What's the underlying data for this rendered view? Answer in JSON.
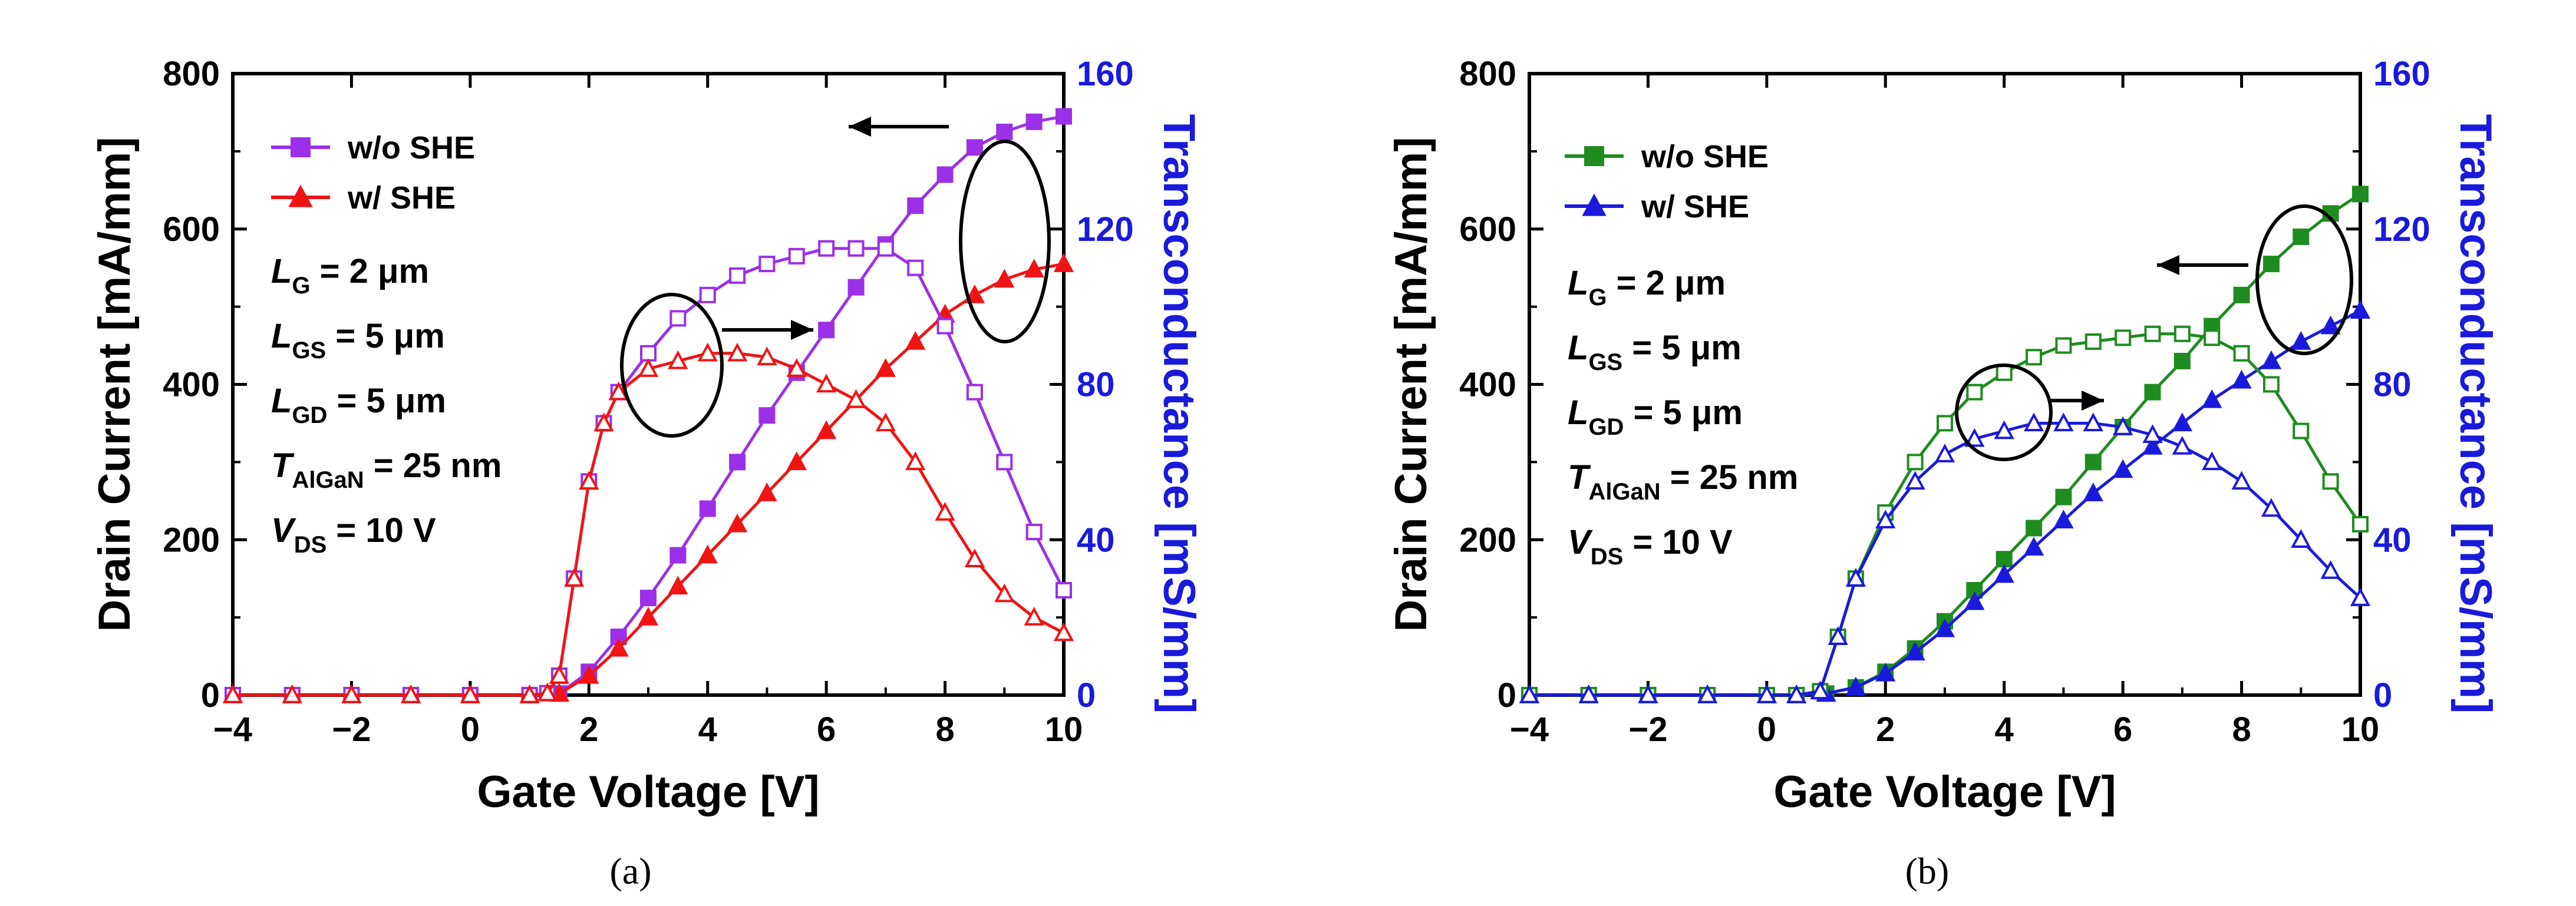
{
  "chart_data": [
    {
      "type": "line",
      "caption": "(a)",
      "xlabel": "Gate Voltage [V]",
      "ylabel_left": "Drain Current [mA/mm]",
      "ylabel_right": "Transconductance [mS/mm]",
      "xlim": [
        -4,
        10
      ],
      "ylim_left": [
        0,
        800
      ],
      "ylim_right": [
        0,
        160
      ],
      "x_ticks": [
        "−4",
        "−2",
        "0",
        "2",
        "4",
        "6",
        "8",
        "10"
      ],
      "y_left_ticks": [
        "0",
        "200",
        "400",
        "600",
        "800"
      ],
      "y_right_ticks": [
        "0",
        "40",
        "80",
        "120",
        "160"
      ],
      "right_axis_color": "#1a1adc",
      "legend_position": "top-left",
      "annotations": [
        {
          "main": "L",
          "sub": "G",
          "rest": " = 2 μm"
        },
        {
          "main": "L",
          "sub": "GS",
          "rest": " = 5 μm"
        },
        {
          "main": "L",
          "sub": "GD",
          "rest": " = 5 μm"
        },
        {
          "main": "T",
          "sub": "AlGaN",
          "rest": " = 25 nm"
        },
        {
          "main": "V",
          "sub": "DS",
          "rest": " = 10 V"
        }
      ],
      "series": [
        {
          "name": "w/o SHE",
          "color": "#9b30e8",
          "marker": "square",
          "axis": "left",
          "fill": true,
          "show_in_legend": true,
          "x": [
            -4,
            -3,
            -2,
            -1,
            0,
            1,
            1.5,
            2,
            2.5,
            3,
            3.5,
            4,
            4.5,
            5,
            5.5,
            6,
            6.5,
            7,
            7.5,
            8,
            8.5,
            9,
            9.5,
            10
          ],
          "y": [
            0,
            0,
            0,
            0,
            0,
            0,
            2,
            30,
            75,
            125,
            180,
            240,
            300,
            360,
            415,
            470,
            525,
            580,
            630,
            670,
            705,
            725,
            738,
            745
          ]
        },
        {
          "name": "w/ SHE",
          "color": "#f01414",
          "marker": "triangle",
          "axis": "left",
          "fill": true,
          "show_in_legend": true,
          "x": [
            -4,
            -3,
            -2,
            -1,
            0,
            1,
            1.5,
            2,
            2.5,
            3,
            3.5,
            4,
            4.5,
            5,
            5.5,
            6,
            6.5,
            7,
            7.5,
            8,
            8.5,
            9,
            9.5,
            10
          ],
          "y": [
            0,
            0,
            0,
            0,
            0,
            0,
            2,
            25,
            60,
            100,
            140,
            180,
            220,
            260,
            300,
            340,
            380,
            420,
            455,
            490,
            515,
            535,
            548,
            555
          ]
        },
        {
          "name": "",
          "color": "#9b30e8",
          "marker": "square",
          "axis": "right",
          "fill": false,
          "show_in_legend": false,
          "x": [
            -4,
            -3,
            -2,
            -1,
            0,
            1,
            1.3,
            1.5,
            1.75,
            2,
            2.25,
            2.5,
            3,
            3.5,
            4,
            4.5,
            5,
            5.5,
            6,
            6.5,
            7,
            7.5,
            8,
            8.5,
            9,
            9.5,
            10
          ],
          "y": [
            0,
            0,
            0,
            0,
            0,
            0,
            0.5,
            5,
            30,
            55,
            70,
            78,
            88,
            97,
            103,
            108,
            111,
            113,
            115,
            115,
            115,
            110,
            95,
            78,
            60,
            42,
            27
          ]
        },
        {
          "name": "",
          "color": "#f01414",
          "marker": "triangle",
          "axis": "right",
          "fill": false,
          "show_in_legend": false,
          "x": [
            -4,
            -3,
            -2,
            -1,
            0,
            1,
            1.3,
            1.5,
            1.75,
            2,
            2.25,
            2.5,
            3,
            3.5,
            4,
            4.5,
            5,
            5.5,
            6,
            6.5,
            7,
            7.5,
            8,
            8.5,
            9,
            9.5,
            10
          ],
          "y": [
            0,
            0,
            0,
            0,
            0,
            0,
            0.5,
            5,
            30,
            55,
            70,
            78,
            84,
            86,
            88,
            88,
            87,
            84,
            80,
            76,
            70,
            60,
            47,
            35,
            26,
            20,
            16
          ]
        }
      ]
    },
    {
      "type": "line",
      "caption": "(b)",
      "xlabel": "Gate Voltage [V]",
      "ylabel_left": "Drain Current [mA/mm]",
      "ylabel_right": "Transconductance [mS/mm]",
      "xlim": [
        -4,
        10
      ],
      "ylim_left": [
        0,
        800
      ],
      "ylim_right": [
        0,
        160
      ],
      "x_ticks": [
        "−4",
        "−2",
        "0",
        "2",
        "4",
        "6",
        "8",
        "10"
      ],
      "y_left_ticks": [
        "0",
        "200",
        "400",
        "600",
        "800"
      ],
      "y_right_ticks": [
        "0",
        "40",
        "80",
        "120",
        "160"
      ],
      "right_axis_color": "#1a1adc",
      "legend_position": "top-left",
      "annotations": [
        {
          "main": "L",
          "sub": "G",
          "rest": " = 2 μm"
        },
        {
          "main": "L",
          "sub": "GS",
          "rest": " = 5 μm"
        },
        {
          "main": "L",
          "sub": "GD",
          "rest": " = 5 μm"
        },
        {
          "main": "T",
          "sub": "AlGaN",
          "rest": " = 25 nm"
        },
        {
          "main": "V",
          "sub": "DS",
          "rest": " = 10 V"
        }
      ],
      "series": [
        {
          "name": "w/o SHE",
          "color": "#1e8c1e",
          "marker": "square",
          "axis": "left",
          "fill": true,
          "show_in_legend": true,
          "x": [
            -4,
            -3,
            -2,
            -1,
            0,
            0.5,
            1,
            1.5,
            2,
            2.5,
            3,
            3.5,
            4,
            4.5,
            5,
            5.5,
            6,
            6.5,
            7,
            7.5,
            8,
            8.5,
            9,
            9.5,
            10
          ],
          "y": [
            0,
            0,
            0,
            0,
            0,
            0,
            2,
            10,
            30,
            60,
            95,
            135,
            175,
            215,
            255,
            300,
            345,
            390,
            430,
            475,
            515,
            555,
            590,
            620,
            645
          ]
        },
        {
          "name": "w/ SHE",
          "color": "#1a1adc",
          "marker": "triangle",
          "axis": "left",
          "fill": true,
          "show_in_legend": true,
          "x": [
            -4,
            -3,
            -2,
            -1,
            0,
            0.5,
            1,
            1.5,
            2,
            2.5,
            3,
            3.5,
            4,
            4.5,
            5,
            5.5,
            6,
            6.5,
            7,
            7.5,
            8,
            8.5,
            9,
            9.5,
            10
          ],
          "y": [
            0,
            0,
            0,
            0,
            0,
            0,
            2,
            10,
            28,
            55,
            85,
            120,
            155,
            190,
            225,
            260,
            290,
            320,
            350,
            380,
            405,
            430,
            455,
            475,
            495
          ]
        },
        {
          "name": "",
          "color": "#1e8c1e",
          "marker": "square",
          "axis": "right",
          "fill": false,
          "show_in_legend": false,
          "x": [
            -4,
            -3,
            -2,
            -1,
            0,
            0.5,
            0.9,
            1.2,
            1.5,
            2,
            2.5,
            3,
            3.5,
            4,
            4.5,
            5,
            5.5,
            6,
            6.5,
            7,
            7.5,
            8,
            8.5,
            9,
            9.5,
            10
          ],
          "y": [
            0,
            0,
            0,
            0,
            0,
            0,
            1,
            15,
            30,
            47,
            60,
            70,
            78,
            83,
            87,
            90,
            91,
            92,
            93,
            93,
            92,
            88,
            80,
            68,
            55,
            44
          ]
        },
        {
          "name": "",
          "color": "#1a1adc",
          "marker": "triangle",
          "axis": "right",
          "fill": false,
          "show_in_legend": false,
          "x": [
            -4,
            -3,
            -2,
            -1,
            0,
            0.5,
            0.9,
            1.2,
            1.5,
            2,
            2.5,
            3,
            3.5,
            4,
            4.5,
            5,
            5.5,
            6,
            6.5,
            7,
            7.5,
            8,
            8.5,
            9,
            9.5,
            10
          ],
          "y": [
            0,
            0,
            0,
            0,
            0,
            0,
            1,
            15,
            30,
            45,
            55,
            62,
            66,
            68,
            70,
            70,
            70,
            69,
            67,
            64,
            60,
            55,
            48,
            40,
            32,
            25
          ]
        }
      ]
    }
  ]
}
